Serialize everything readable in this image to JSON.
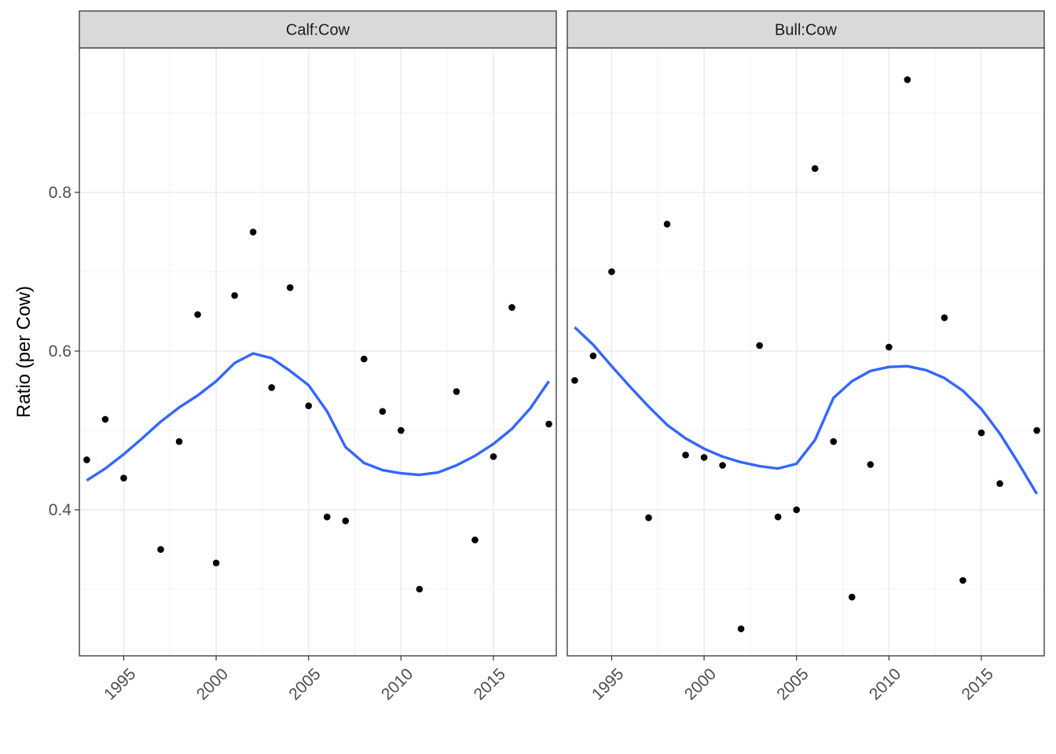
{
  "chart_data": {
    "type": "scatter",
    "ylabel": "Ratio (per Cow)",
    "xlabel": "",
    "xlim": [
      1992.6,
      2018.4
    ],
    "ylim": [
      0.216,
      0.982
    ],
    "x_ticks": [
      1995,
      2000,
      2005,
      2010,
      2015
    ],
    "y_ticks": [
      0.4,
      0.6,
      0.8
    ],
    "y_tick_labels": [
      "0.4",
      "0.6",
      "0.8"
    ],
    "grid": true,
    "point_color": "#000000",
    "smooth_color": "#3366ff",
    "panels": [
      {
        "strip": "Calf:Cow",
        "points": [
          {
            "x": 1993,
            "y": 0.463
          },
          {
            "x": 1994,
            "y": 0.514
          },
          {
            "x": 1995,
            "y": 0.44
          },
          {
            "x": 1997,
            "y": 0.35
          },
          {
            "x": 1998,
            "y": 0.486
          },
          {
            "x": 1999,
            "y": 0.646
          },
          {
            "x": 2000,
            "y": 0.333
          },
          {
            "x": 2001,
            "y": 0.67
          },
          {
            "x": 2002,
            "y": 0.75
          },
          {
            "x": 2003,
            "y": 0.554
          },
          {
            "x": 2004,
            "y": 0.68
          },
          {
            "x": 2005,
            "y": 0.531
          },
          {
            "x": 2006,
            "y": 0.391
          },
          {
            "x": 2007,
            "y": 0.386
          },
          {
            "x": 2008,
            "y": 0.59
          },
          {
            "x": 2009,
            "y": 0.524
          },
          {
            "x": 2010,
            "y": 0.5
          },
          {
            "x": 2011,
            "y": 0.3
          },
          {
            "x": 2013,
            "y": 0.549
          },
          {
            "x": 2014,
            "y": 0.362
          },
          {
            "x": 2015,
            "y": 0.467
          },
          {
            "x": 2016,
            "y": 0.655
          },
          {
            "x": 2018,
            "y": 0.508
          }
        ],
        "smooth": [
          {
            "x": 1993,
            "y": 0.437
          },
          {
            "x": 1994,
            "y": 0.452
          },
          {
            "x": 1995,
            "y": 0.47
          },
          {
            "x": 1996,
            "y": 0.49
          },
          {
            "x": 1997,
            "y": 0.511
          },
          {
            "x": 1998,
            "y": 0.529
          },
          {
            "x": 1999,
            "y": 0.544
          },
          {
            "x": 2000,
            "y": 0.562
          },
          {
            "x": 2001,
            "y": 0.585
          },
          {
            "x": 2002,
            "y": 0.597
          },
          {
            "x": 2003,
            "y": 0.591
          },
          {
            "x": 2004,
            "y": 0.575
          },
          {
            "x": 2005,
            "y": 0.557
          },
          {
            "x": 2006,
            "y": 0.524
          },
          {
            "x": 2007,
            "y": 0.479
          },
          {
            "x": 2008,
            "y": 0.459
          },
          {
            "x": 2009,
            "y": 0.45
          },
          {
            "x": 2010,
            "y": 0.446
          },
          {
            "x": 2011,
            "y": 0.444
          },
          {
            "x": 2012,
            "y": 0.447
          },
          {
            "x": 2013,
            "y": 0.456
          },
          {
            "x": 2014,
            "y": 0.468
          },
          {
            "x": 2015,
            "y": 0.483
          },
          {
            "x": 2016,
            "y": 0.502
          },
          {
            "x": 2017,
            "y": 0.528
          },
          {
            "x": 2018,
            "y": 0.562
          }
        ]
      },
      {
        "strip": "Bull:Cow",
        "points": [
          {
            "x": 1993,
            "y": 0.563
          },
          {
            "x": 1994,
            "y": 0.594
          },
          {
            "x": 1995,
            "y": 0.7
          },
          {
            "x": 1997,
            "y": 0.39
          },
          {
            "x": 1998,
            "y": 0.76
          },
          {
            "x": 1999,
            "y": 0.469
          },
          {
            "x": 2000,
            "y": 0.466
          },
          {
            "x": 2001,
            "y": 0.456
          },
          {
            "x": 2002,
            "y": 0.25
          },
          {
            "x": 2003,
            "y": 0.607
          },
          {
            "x": 2004,
            "y": 0.391
          },
          {
            "x": 2005,
            "y": 0.4
          },
          {
            "x": 2006,
            "y": 0.83
          },
          {
            "x": 2007,
            "y": 0.486
          },
          {
            "x": 2008,
            "y": 0.29
          },
          {
            "x": 2009,
            "y": 0.457
          },
          {
            "x": 2010,
            "y": 0.605
          },
          {
            "x": 2011,
            "y": 0.942
          },
          {
            "x": 2013,
            "y": 0.642
          },
          {
            "x": 2014,
            "y": 0.311
          },
          {
            "x": 2015,
            "y": 0.497
          },
          {
            "x": 2016,
            "y": 0.433
          },
          {
            "x": 2018,
            "y": 0.5
          }
        ],
        "smooth": [
          {
            "x": 1993,
            "y": 0.63
          },
          {
            "x": 1994,
            "y": 0.608
          },
          {
            "x": 1995,
            "y": 0.581
          },
          {
            "x": 1996,
            "y": 0.555
          },
          {
            "x": 1997,
            "y": 0.53
          },
          {
            "x": 1998,
            "y": 0.507
          },
          {
            "x": 1999,
            "y": 0.49
          },
          {
            "x": 2000,
            "y": 0.477
          },
          {
            "x": 2001,
            "y": 0.467
          },
          {
            "x": 2002,
            "y": 0.46
          },
          {
            "x": 2003,
            "y": 0.455
          },
          {
            "x": 2004,
            "y": 0.452
          },
          {
            "x": 2005,
            "y": 0.458
          },
          {
            "x": 2006,
            "y": 0.488
          },
          {
            "x": 2007,
            "y": 0.541
          },
          {
            "x": 2008,
            "y": 0.562
          },
          {
            "x": 2009,
            "y": 0.575
          },
          {
            "x": 2010,
            "y": 0.58
          },
          {
            "x": 2011,
            "y": 0.581
          },
          {
            "x": 2012,
            "y": 0.576
          },
          {
            "x": 2013,
            "y": 0.566
          },
          {
            "x": 2014,
            "y": 0.55
          },
          {
            "x": 2015,
            "y": 0.527
          },
          {
            "x": 2016,
            "y": 0.496
          },
          {
            "x": 2017,
            "y": 0.459
          },
          {
            "x": 2018,
            "y": 0.42
          }
        ]
      }
    ]
  }
}
